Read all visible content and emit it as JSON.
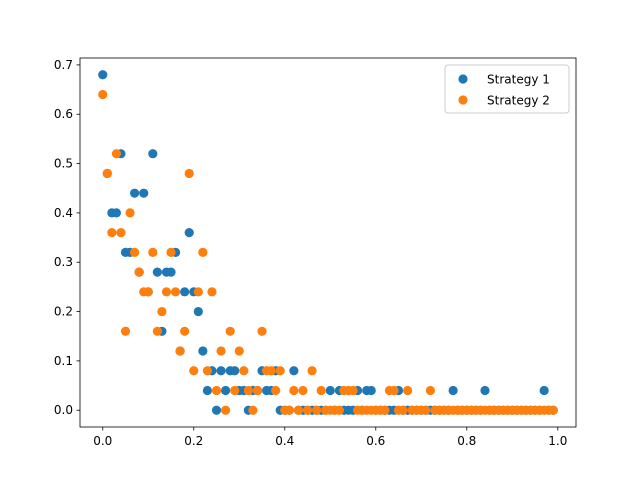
{
  "chart_data": {
    "type": "scatter",
    "title": "",
    "xlabel": "",
    "ylabel": "",
    "xlim": [
      -0.05,
      1.04
    ],
    "ylim": [
      -0.034,
      0.714
    ],
    "xticks": [
      0.0,
      0.2,
      0.4,
      0.6,
      0.8,
      1.0
    ],
    "xtick_labels": [
      "0.0",
      "0.2",
      "0.4",
      "0.6",
      "0.8",
      "1.0"
    ],
    "yticks": [
      0.0,
      0.1,
      0.2,
      0.3,
      0.4,
      0.5,
      0.6,
      0.7
    ],
    "ytick_labels": [
      "0.0",
      "0.1",
      "0.2",
      "0.3",
      "0.4",
      "0.5",
      "0.6",
      "0.7"
    ],
    "grid": false,
    "legend": "top-right",
    "series": [
      {
        "name": "Strategy 1",
        "color": "#1f77b4",
        "points": [
          [
            0.0,
            0.68
          ],
          [
            0.01,
            0.48
          ],
          [
            0.02,
            0.4
          ],
          [
            0.03,
            0.4
          ],
          [
            0.04,
            0.52
          ],
          [
            0.05,
            0.32
          ],
          [
            0.06,
            0.32
          ],
          [
            0.07,
            0.44
          ],
          [
            0.08,
            0.28
          ],
          [
            0.09,
            0.44
          ],
          [
            0.1,
            0.24
          ],
          [
            0.11,
            0.52
          ],
          [
            0.12,
            0.28
          ],
          [
            0.13,
            0.16
          ],
          [
            0.14,
            0.28
          ],
          [
            0.15,
            0.28
          ],
          [
            0.16,
            0.32
          ],
          [
            0.17,
            0.12
          ],
          [
            0.18,
            0.24
          ],
          [
            0.19,
            0.36
          ],
          [
            0.2,
            0.24
          ],
          [
            0.21,
            0.2
          ],
          [
            0.22,
            0.12
          ],
          [
            0.23,
            0.04
          ],
          [
            0.24,
            0.08
          ],
          [
            0.25,
            0.0
          ],
          [
            0.26,
            0.08
          ],
          [
            0.27,
            0.04
          ],
          [
            0.28,
            0.08
          ],
          [
            0.29,
            0.08
          ],
          [
            0.3,
            0.04
          ],
          [
            0.31,
            0.04
          ],
          [
            0.32,
            0.0
          ],
          [
            0.33,
            0.04
          ],
          [
            0.34,
            0.04
          ],
          [
            0.35,
            0.08
          ],
          [
            0.36,
            0.04
          ],
          [
            0.37,
            0.04
          ],
          [
            0.38,
            0.08
          ],
          [
            0.39,
            0.0
          ],
          [
            0.4,
            0.0
          ],
          [
            0.41,
            0.0
          ],
          [
            0.42,
            0.08
          ],
          [
            0.43,
            0.0
          ],
          [
            0.44,
            0.0
          ],
          [
            0.45,
            0.0
          ],
          [
            0.46,
            0.0
          ],
          [
            0.47,
            0.0
          ],
          [
            0.48,
            0.0
          ],
          [
            0.49,
            0.0
          ],
          [
            0.5,
            0.04
          ],
          [
            0.51,
            0.0
          ],
          [
            0.52,
            0.04
          ],
          [
            0.53,
            0.0
          ],
          [
            0.54,
            0.0
          ],
          [
            0.55,
            0.0
          ],
          [
            0.56,
            0.04
          ],
          [
            0.57,
            0.0
          ],
          [
            0.58,
            0.04
          ],
          [
            0.59,
            0.04
          ],
          [
            0.6,
            0.0
          ],
          [
            0.61,
            0.0
          ],
          [
            0.62,
            0.0
          ],
          [
            0.63,
            0.0
          ],
          [
            0.64,
            0.0
          ],
          [
            0.65,
            0.04
          ],
          [
            0.66,
            0.0
          ],
          [
            0.67,
            0.0
          ],
          [
            0.68,
            0.0
          ],
          [
            0.69,
            0.0
          ],
          [
            0.7,
            0.0
          ],
          [
            0.71,
            0.0
          ],
          [
            0.72,
            0.0
          ],
          [
            0.73,
            0.0
          ],
          [
            0.74,
            0.0
          ],
          [
            0.75,
            0.0
          ],
          [
            0.76,
            0.0
          ],
          [
            0.77,
            0.04
          ],
          [
            0.78,
            0.0
          ],
          [
            0.79,
            0.0
          ],
          [
            0.8,
            0.0
          ],
          [
            0.81,
            0.0
          ],
          [
            0.82,
            0.0
          ],
          [
            0.83,
            0.0
          ],
          [
            0.84,
            0.04
          ],
          [
            0.85,
            0.0
          ],
          [
            0.86,
            0.0
          ],
          [
            0.87,
            0.0
          ],
          [
            0.88,
            0.0
          ],
          [
            0.89,
            0.0
          ],
          [
            0.9,
            0.0
          ],
          [
            0.91,
            0.0
          ],
          [
            0.92,
            0.0
          ],
          [
            0.93,
            0.0
          ],
          [
            0.94,
            0.0
          ],
          [
            0.95,
            0.0
          ],
          [
            0.96,
            0.0
          ],
          [
            0.97,
            0.04
          ],
          [
            0.98,
            0.0
          ],
          [
            0.99,
            0.0
          ]
        ]
      },
      {
        "name": "Strategy 2",
        "color": "#ff7f0e",
        "points": [
          [
            0.0,
            0.64
          ],
          [
            0.01,
            0.48
          ],
          [
            0.02,
            0.36
          ],
          [
            0.03,
            0.52
          ],
          [
            0.04,
            0.36
          ],
          [
            0.05,
            0.16
          ],
          [
            0.06,
            0.4
          ],
          [
            0.07,
            0.32
          ],
          [
            0.08,
            0.28
          ],
          [
            0.09,
            0.24
          ],
          [
            0.1,
            0.24
          ],
          [
            0.11,
            0.32
          ],
          [
            0.12,
            0.16
          ],
          [
            0.13,
            0.2
          ],
          [
            0.14,
            0.24
          ],
          [
            0.15,
            0.32
          ],
          [
            0.16,
            0.24
          ],
          [
            0.17,
            0.12
          ],
          [
            0.18,
            0.16
          ],
          [
            0.19,
            0.48
          ],
          [
            0.2,
            0.08
          ],
          [
            0.21,
            0.24
          ],
          [
            0.22,
            0.32
          ],
          [
            0.23,
            0.08
          ],
          [
            0.24,
            0.24
          ],
          [
            0.25,
            0.04
          ],
          [
            0.26,
            0.12
          ],
          [
            0.27,
            0.0
          ],
          [
            0.28,
            0.16
          ],
          [
            0.29,
            0.04
          ],
          [
            0.3,
            0.12
          ],
          [
            0.31,
            0.08
          ],
          [
            0.32,
            0.04
          ],
          [
            0.33,
            0.0
          ],
          [
            0.34,
            0.04
          ],
          [
            0.35,
            0.16
          ],
          [
            0.36,
            0.08
          ],
          [
            0.37,
            0.08
          ],
          [
            0.38,
            0.04
          ],
          [
            0.39,
            0.08
          ],
          [
            0.4,
            0.0
          ],
          [
            0.41,
            0.0
          ],
          [
            0.42,
            0.04
          ],
          [
            0.43,
            0.0
          ],
          [
            0.44,
            0.04
          ],
          [
            0.45,
            0.0
          ],
          [
            0.46,
            0.08
          ],
          [
            0.47,
            0.0
          ],
          [
            0.48,
            0.04
          ],
          [
            0.49,
            0.0
          ],
          [
            0.5,
            0.0
          ],
          [
            0.51,
            0.0
          ],
          [
            0.52,
            0.0
          ],
          [
            0.53,
            0.04
          ],
          [
            0.54,
            0.04
          ],
          [
            0.55,
            0.04
          ],
          [
            0.56,
            0.0
          ],
          [
            0.57,
            0.0
          ],
          [
            0.58,
            0.0
          ],
          [
            0.59,
            0.0
          ],
          [
            0.6,
            0.0
          ],
          [
            0.61,
            0.0
          ],
          [
            0.62,
            0.0
          ],
          [
            0.63,
            0.04
          ],
          [
            0.64,
            0.04
          ],
          [
            0.65,
            0.0
          ],
          [
            0.66,
            0.0
          ],
          [
            0.67,
            0.04
          ],
          [
            0.68,
            0.0
          ],
          [
            0.69,
            0.0
          ],
          [
            0.7,
            0.0
          ],
          [
            0.71,
            0.0
          ],
          [
            0.72,
            0.04
          ],
          [
            0.73,
            0.0
          ],
          [
            0.74,
            0.0
          ],
          [
            0.75,
            0.0
          ],
          [
            0.76,
            0.0
          ],
          [
            0.77,
            0.0
          ],
          [
            0.78,
            0.0
          ],
          [
            0.79,
            0.0
          ],
          [
            0.8,
            0.0
          ],
          [
            0.81,
            0.0
          ],
          [
            0.82,
            0.0
          ],
          [
            0.83,
            0.0
          ],
          [
            0.84,
            0.0
          ],
          [
            0.85,
            0.0
          ],
          [
            0.86,
            0.0
          ],
          [
            0.87,
            0.0
          ],
          [
            0.88,
            0.0
          ],
          [
            0.89,
            0.0
          ],
          [
            0.9,
            0.0
          ],
          [
            0.91,
            0.0
          ],
          [
            0.92,
            0.0
          ],
          [
            0.93,
            0.0
          ],
          [
            0.94,
            0.0
          ],
          [
            0.95,
            0.0
          ],
          [
            0.96,
            0.0
          ],
          [
            0.97,
            0.0
          ],
          [
            0.98,
            0.0
          ],
          [
            0.99,
            0.0
          ]
        ]
      }
    ]
  }
}
